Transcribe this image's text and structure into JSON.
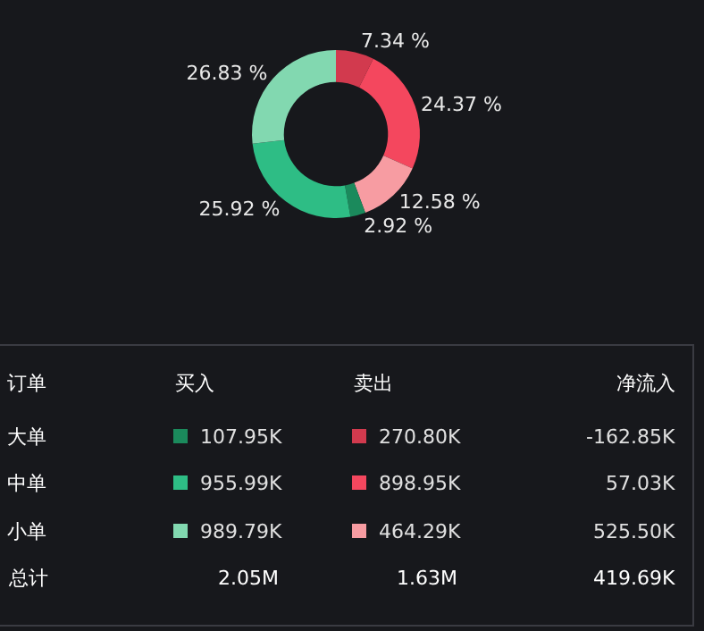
{
  "chart_data": [
    {
      "type": "donut",
      "categories": [
        null,
        null,
        null,
        null,
        null,
        null
      ],
      "values": [
        7.34,
        24.37,
        12.58,
        2.92,
        25.92,
        26.83
      ],
      "colors": [
        "#d23a4e",
        "#f4475e",
        "#f79ca2",
        "#1b8a5c",
        "#2ebd85",
        "#82d8b0"
      ],
      "value_labels": [
        "7.34 %",
        "24.37 %",
        "12.58 %",
        "2.92 %",
        "25.92 %",
        "26.83 %"
      ]
    },
    {
      "type": "other",
      "annotations": [
        "订单",
        "买入",
        "卖出",
        "净流入",
        "大单",
        "107.95K",
        "270.80K",
        "-162.85K",
        "中单",
        "955.99K",
        "898.95K",
        "57.03K",
        "小单",
        "989.79K",
        "464.29K",
        "525.50K",
        "总计",
        "2.05M",
        "1.63M",
        "419.69K"
      ]
    }
  ]
}
